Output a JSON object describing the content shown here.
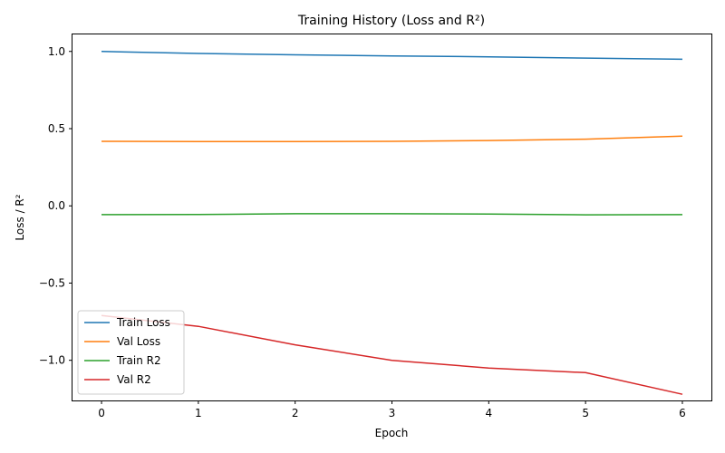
{
  "chart_data": {
    "type": "line",
    "title": "Training History (Loss and R²)",
    "xlabel": "Epoch",
    "ylabel": "Loss / R²",
    "x": [
      0,
      1,
      2,
      3,
      4,
      5,
      6
    ],
    "xlim": [
      -0.3,
      6.3
    ],
    "ylim": [
      -1.26,
      1.11
    ],
    "xticks": [
      0,
      1,
      2,
      3,
      4,
      5,
      6
    ],
    "xtick_labels": [
      "0",
      "1",
      "2",
      "3",
      "4",
      "5",
      "6"
    ],
    "yticks": [
      1.0,
      0.5,
      0.0,
      -0.5,
      -1.0
    ],
    "ytick_labels": [
      "1.0",
      "0.5",
      "0.0",
      "−0.5",
      "−1.0"
    ],
    "grid": false,
    "legend_position": "lower-left",
    "series": [
      {
        "name": "Train Loss",
        "color": "#1f77b4",
        "values": [
          1.0,
          0.987,
          0.978,
          0.971,
          0.965,
          0.957,
          0.949
        ]
      },
      {
        "name": "Val Loss",
        "color": "#ff7f0e",
        "values": [
          0.418,
          0.416,
          0.416,
          0.418,
          0.423,
          0.432,
          0.452
        ]
      },
      {
        "name": "Train R2",
        "color": "#2ca02c",
        "values": [
          -0.057,
          -0.056,
          -0.051,
          -0.051,
          -0.053,
          -0.058,
          -0.057
        ]
      },
      {
        "name": "Val R2",
        "color": "#d62728",
        "values": [
          -0.71,
          -0.78,
          -0.9,
          -1.0,
          -1.05,
          -1.08,
          -1.22
        ]
      }
    ]
  }
}
